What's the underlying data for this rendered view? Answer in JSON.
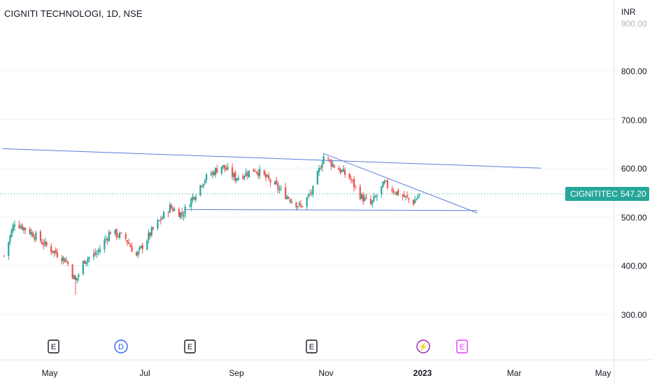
{
  "header": {
    "title": "CIGNITI TECHNOLOGI, 1D, NSE"
  },
  "axis": {
    "currency": "INR",
    "top_label": "900.00",
    "price_labels": [
      "800.00",
      "700.00",
      "600.00",
      "500.00",
      "400.00",
      "300.00"
    ],
    "time_labels": [
      "May",
      "Jul",
      "Sep",
      "Nov",
      "2023",
      "Mar",
      "May"
    ]
  },
  "last_price": {
    "symbol": "CIGNITITEC",
    "value": "547.20",
    "color": "#26a69a"
  },
  "colors": {
    "up": "#26a69a",
    "down": "#ef5350",
    "trendline": "#5b7fd9",
    "grid": "#e6e6e6"
  },
  "events": [
    {
      "label": "E",
      "type": "earnings",
      "color": "#131722"
    },
    {
      "label": "D",
      "type": "dividend",
      "color": "#2962ff"
    },
    {
      "label": "E",
      "type": "earnings",
      "color": "#131722"
    },
    {
      "label": "E",
      "type": "earnings",
      "color": "#131722"
    },
    {
      "label": "⚡",
      "type": "flash",
      "color": "#9c27b0"
    },
    {
      "label": "E",
      "type": "earnings-upcoming",
      "color": "#e040fb"
    }
  ],
  "chart_data": {
    "type": "candlestick",
    "symbol": "CIGNITI TECHNOLOGI",
    "interval": "1D",
    "exchange": "NSE",
    "ylim": [
      205,
      930
    ],
    "anchors": [
      [
        "2022-04-01",
        420
      ],
      [
        "2022-04-08",
        490
      ],
      [
        "2022-04-20",
        465
      ],
      [
        "2022-04-29",
        440
      ],
      [
        "2022-05-12",
        410
      ],
      [
        "2022-05-18",
        368
      ],
      [
        "2022-05-24",
        412
      ],
      [
        "2022-06-01",
        425
      ],
      [
        "2022-06-10",
        470
      ],
      [
        "2022-06-20",
        455
      ],
      [
        "2022-06-27",
        420
      ],
      [
        "2022-07-07",
        470
      ],
      [
        "2022-07-19",
        520
      ],
      [
        "2022-07-27",
        505
      ],
      [
        "2022-08-10",
        575
      ],
      [
        "2022-08-22",
        605
      ],
      [
        "2022-08-31",
        580
      ],
      [
        "2022-09-13",
        598
      ],
      [
        "2022-09-22",
        575
      ],
      [
        "2022-10-03",
        545
      ],
      [
        "2022-10-13",
        520
      ],
      [
        "2022-10-21",
        555
      ],
      [
        "2022-10-28",
        625
      ],
      [
        "2022-11-04",
        605
      ],
      [
        "2022-11-14",
        580
      ],
      [
        "2022-11-22",
        540
      ],
      [
        "2022-11-28",
        525
      ],
      [
        "2022-12-07",
        568
      ],
      [
        "2022-12-15",
        550
      ],
      [
        "2022-12-26",
        530
      ],
      [
        "2022-12-30",
        547.2
      ]
    ],
    "lows": [
      [
        "2022-05-18",
        340
      ]
    ],
    "trendlines": [
      {
        "from": [
          "2022-03-31",
          640
        ],
        "to": [
          "2023-03-20",
          600
        ]
      },
      {
        "from": [
          "2022-07-29",
          515
        ],
        "to": [
          "2023-02-06",
          513
        ]
      },
      {
        "from": [
          "2022-10-28",
          630
        ],
        "to": [
          "2023-02-06",
          508
        ]
      }
    ],
    "last_price": 547.2
  }
}
